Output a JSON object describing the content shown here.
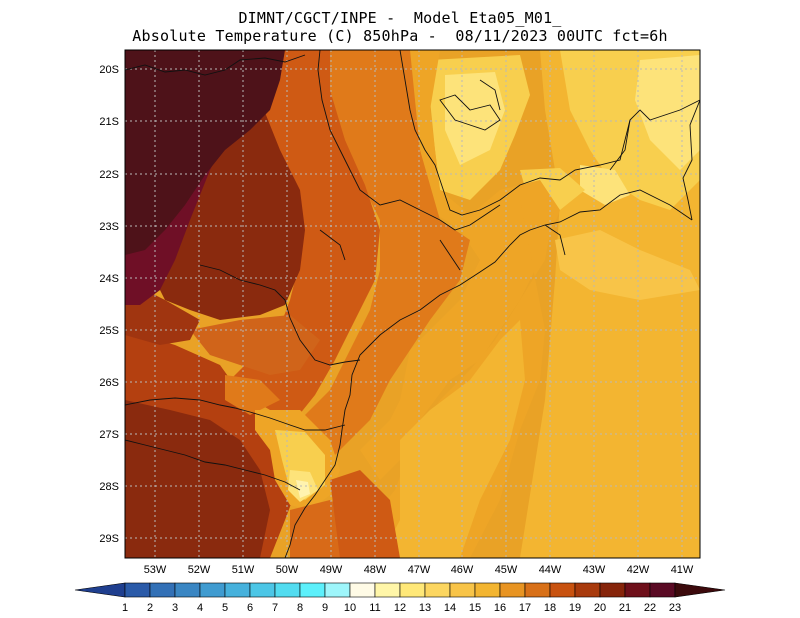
{
  "header": {
    "line1": "DIMNT/CGCT/INPE -  Model Eta05_M01_",
    "line2": "Absolute Temperature (C) 850hPa -  08/11/2023 00UTC fct=6h"
  },
  "map": {
    "lat_labels": [
      "20S",
      "21S",
      "22S",
      "23S",
      "24S",
      "25S",
      "26S",
      "27S",
      "28S",
      "29S"
    ],
    "lon_labels": [
      "53W",
      "52W",
      "51W",
      "50W",
      "49W",
      "48W",
      "47W",
      "46W",
      "45W",
      "44W",
      "43W",
      "42W",
      "41W"
    ]
  },
  "colorbar": {
    "labels": [
      "1",
      "2",
      "3",
      "4",
      "5",
      "6",
      "7",
      "8",
      "9",
      "10",
      "11",
      "12",
      "13",
      "14",
      "15",
      "16",
      "17",
      "18",
      "19",
      "20",
      "21",
      "22",
      "23"
    ],
    "colors": [
      "#1f3f8f",
      "#2a5aa8",
      "#3270b6",
      "#3a86c3",
      "#3f9bd0",
      "#46b1dc",
      "#4cc6e6",
      "#52dcf0",
      "#5cf0fb",
      "#9ef6fb",
      "#fffbe6",
      "#fff6a8",
      "#ffe878",
      "#fcd660",
      "#f8c448",
      "#f3b531",
      "#e89422",
      "#d87018",
      "#c8520f",
      "#a83a0c",
      "#86240a",
      "#6e0f1a",
      "#5a0a24",
      "#3c0a0c"
    ]
  },
  "palette": {
    "deep": "#4e1219",
    "crimson": "#6f0f26",
    "maroon": "#8a2a0e",
    "rust": "#b44010",
    "orange_dark": "#cf5a14",
    "orange": "#e07a1a",
    "amber": "#eea526",
    "gold": "#f3b531",
    "yellow": "#f8cf4e",
    "light": "#fde37a",
    "pale": "#fff3b0"
  }
}
